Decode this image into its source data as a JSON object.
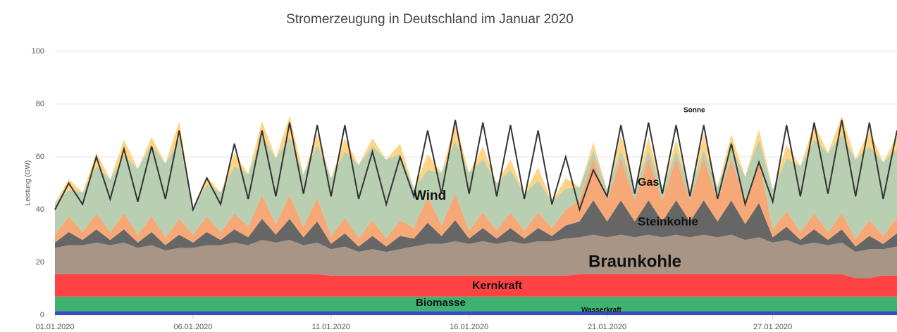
{
  "chart_data": {
    "type": "stacked-area",
    "title": "Stromerzeugung in Deutschland im Januar 2020",
    "y_label": "Leistung (GW)",
    "xlim": [
      0,
      30.5
    ],
    "ylim": [
      0,
      100
    ],
    "yticks": [
      0,
      20,
      40,
      60,
      80,
      100
    ],
    "xticks": [
      {
        "value": 0,
        "label": "01.01.2020"
      },
      {
        "value": 5,
        "label": "06.01.2020"
      },
      {
        "value": 10,
        "label": "11.01.2020"
      },
      {
        "value": 15,
        "label": "16.01.2020"
      },
      {
        "value": 20,
        "label": "21.01.2020"
      },
      {
        "value": 26,
        "label": "27.01.2020"
      }
    ],
    "grid": true,
    "x": [
      0,
      0.5,
      1,
      1.5,
      2,
      2.5,
      3,
      3.5,
      4,
      4.5,
      5,
      5.5,
      6,
      6.5,
      7,
      7.5,
      8,
      8.5,
      9,
      9.5,
      10,
      10.5,
      11,
      11.5,
      12,
      12.5,
      13,
      13.5,
      14,
      14.5,
      15,
      15.5,
      16,
      16.5,
      17,
      17.5,
      18,
      18.5,
      19,
      19.5,
      20,
      20.5,
      21,
      21.5,
      22,
      22.5,
      23,
      23.5,
      24,
      24.5,
      25,
      25.5,
      26,
      26.5,
      27,
      27.5,
      28,
      28.5,
      29,
      29.5,
      30,
      30.5
    ],
    "series": [
      {
        "name": "Wasserkraft",
        "color": "#3a4cc0",
        "values": [
          1.5,
          1.5,
          1.5,
          1.5,
          1.5,
          1.5,
          1.5,
          1.5,
          1.5,
          1.5,
          1.5,
          1.5,
          1.5,
          1.5,
          1.5,
          1.5,
          1.5,
          1.5,
          1.5,
          1.5,
          1.5,
          1.5,
          1.5,
          1.5,
          1.5,
          1.5,
          1.5,
          1.5,
          1.5,
          1.5,
          1.5,
          1.5,
          1.5,
          1.5,
          1.5,
          1.5,
          1.5,
          1.5,
          1.5,
          1.5,
          1.5,
          1.5,
          1.5,
          1.5,
          1.5,
          1.5,
          1.5,
          1.5,
          1.5,
          1.5,
          1.5,
          1.5,
          1.5,
          1.5,
          1.5,
          1.5,
          1.5,
          1.5,
          1.5,
          1.5,
          1.5,
          1.5
        ]
      },
      {
        "name": "Biomasse",
        "color": "#3cb371",
        "values": [
          5.5,
          5.5,
          5.5,
          5.5,
          5.5,
          5.5,
          5.5,
          5.5,
          5.5,
          5.5,
          5.5,
          5.5,
          5.5,
          5.5,
          5.5,
          5.5,
          5.5,
          5.5,
          5.5,
          5.5,
          5.5,
          5.5,
          5.5,
          5.5,
          5.5,
          5.5,
          5.5,
          5.5,
          5.5,
          5.5,
          5.5,
          5.5,
          5.5,
          5.5,
          5.5,
          5.5,
          5.5,
          5.5,
          5.5,
          5.5,
          5.5,
          5.5,
          5.5,
          5.5,
          5.5,
          5.5,
          5.5,
          5.5,
          5.5,
          5.5,
          5.5,
          5.5,
          5.5,
          5.5,
          5.5,
          5.5,
          5.5,
          5.5,
          5.5,
          5.5,
          5.5,
          5.5
        ]
      },
      {
        "name": "Kernkraft",
        "color": "#ff4343",
        "values": [
          8.5,
          8.5,
          8.5,
          8.5,
          8.5,
          8.5,
          8.5,
          8.5,
          8.5,
          8.5,
          8.5,
          8.5,
          8.5,
          8.5,
          8.5,
          8.5,
          8.5,
          8.5,
          8.5,
          8.5,
          8,
          8,
          8,
          8,
          8,
          8,
          8,
          8,
          8,
          8,
          8,
          8,
          8,
          8,
          8,
          8,
          8,
          8,
          8.5,
          8.5,
          8.5,
          8.5,
          8.5,
          8.5,
          8.5,
          8.5,
          8.5,
          8.5,
          8.5,
          8.5,
          8.5,
          8.5,
          8.5,
          8.5,
          8.5,
          8.5,
          8.5,
          8.5,
          7,
          7,
          8,
          8
        ]
      },
      {
        "name": "Braunkohle",
        "color": "#a89585",
        "values": [
          10,
          11,
          11,
          12,
          11,
          12,
          10,
          11,
          9,
          10,
          10,
          11,
          11,
          12,
          11,
          13,
          12,
          13,
          11,
          12,
          10,
          11,
          9,
          10,
          9,
          10,
          11,
          12,
          12,
          13,
          12,
          13,
          12,
          13,
          12,
          13,
          13,
          14,
          14,
          15,
          14,
          15,
          14,
          15,
          14,
          15,
          14,
          15,
          14,
          15,
          13,
          14,
          12,
          13,
          11,
          12,
          11,
          12,
          10,
          11,
          10,
          11
        ]
      },
      {
        "name": "Steinkohle",
        "color": "#666666",
        "values": [
          2,
          5,
          2,
          5,
          2,
          5,
          2,
          5,
          2,
          5,
          2,
          5,
          2,
          5,
          3,
          8,
          3,
          8,
          3,
          8,
          2,
          5,
          2,
          5,
          2,
          5,
          3,
          8,
          3,
          8,
          2,
          5,
          2,
          5,
          2,
          5,
          2,
          5,
          6,
          13,
          6,
          13,
          6,
          13,
          6,
          13,
          6,
          13,
          6,
          13,
          6,
          13,
          2,
          5,
          2,
          5,
          2,
          5,
          2,
          5,
          2,
          5
        ]
      },
      {
        "name": "Gas",
        "color": "#f7a877",
        "values": [
          3,
          6,
          3,
          6,
          3,
          6,
          3,
          6,
          3,
          6,
          3,
          6,
          3,
          6,
          4,
          9,
          4,
          9,
          4,
          9,
          3,
          6,
          3,
          6,
          3,
          6,
          4,
          10,
          4,
          10,
          3,
          6,
          3,
          6,
          3,
          6,
          3,
          6,
          8,
          16,
          8,
          16,
          8,
          16,
          8,
          16,
          8,
          16,
          8,
          16,
          8,
          16,
          3,
          6,
          3,
          6,
          3,
          6,
          3,
          6,
          3,
          6
        ]
      },
      {
        "name": "Wind",
        "color": "#b9cfb2",
        "values": [
          12,
          10,
          15,
          18,
          20,
          22,
          25,
          27,
          28,
          30,
          10,
          12,
          15,
          18,
          20,
          22,
          25,
          22,
          20,
          20,
          22,
          25,
          28,
          28,
          30,
          25,
          15,
          10,
          20,
          20,
          22,
          20,
          18,
          16,
          14,
          12,
          10,
          8,
          5,
          3,
          4,
          3,
          4,
          3,
          4,
          3,
          4,
          3,
          5,
          4,
          10,
          8,
          15,
          20,
          25,
          28,
          30,
          30,
          30,
          28,
          28,
          26
        ]
      },
      {
        "name": "Sonne",
        "color": "#ffd485",
        "values": [
          0,
          4,
          0,
          5,
          0,
          6,
          0,
          3,
          0,
          7,
          0,
          3,
          0,
          5,
          0,
          6,
          0,
          8,
          0,
          4,
          0,
          5,
          0,
          3,
          0,
          4,
          0,
          6,
          0,
          7,
          0,
          5,
          0,
          4,
          0,
          5,
          0,
          4,
          0,
          3,
          0,
          6,
          0,
          5,
          0,
          4,
          0,
          6,
          0,
          5,
          0,
          4,
          0,
          5,
          0,
          6,
          0,
          7,
          0,
          6,
          0,
          5
        ]
      }
    ],
    "line": {
      "color": "#333333",
      "values": [
        40,
        50,
        42,
        60,
        44,
        63,
        43,
        64,
        44,
        70,
        40,
        52,
        42,
        65,
        44,
        70,
        45,
        73,
        46,
        72,
        45,
        72,
        44,
        62,
        42,
        60,
        45,
        70,
        46,
        74,
        46,
        73,
        45,
        72,
        44,
        70,
        42,
        60,
        40,
        55,
        45,
        72,
        46,
        73,
        46,
        72,
        45,
        72,
        44,
        65,
        42,
        58,
        43,
        72,
        45,
        73,
        46,
        74,
        45,
        73,
        44,
        70
      ]
    }
  }
}
